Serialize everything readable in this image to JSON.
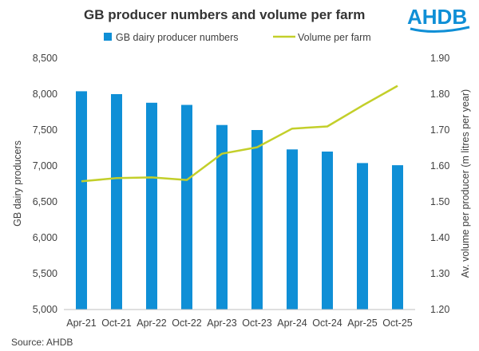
{
  "chart_data": {
    "type": "bar+line",
    "title": "GB producer numbers and volume per farm",
    "categories": [
      "Apr-21",
      "Oct-21",
      "Apr-22",
      "Oct-22",
      "Apr-23",
      "Oct-23",
      "Apr-24",
      "Oct-24",
      "Apr-25",
      "Oct-25"
    ],
    "series": [
      {
        "name": "GB dairy producer numbers",
        "type": "bar",
        "axis": "left",
        "color": "#0f8fd6",
        "values": [
          8040,
          8000,
          7880,
          7850,
          7570,
          7500,
          7230,
          7200,
          7040,
          7010
        ]
      },
      {
        "name": "Volume per farm",
        "type": "line",
        "axis": "right",
        "color": "#c3cf2a",
        "values": [
          1.557,
          1.566,
          1.568,
          1.561,
          1.634,
          1.652,
          1.704,
          1.71,
          1.768,
          1.823
        ]
      }
    ],
    "ylabel_left": "GB dairy producers",
    "ylabel_right": "Av. volume per producer (m litres per year)",
    "ylim_left": [
      5000,
      8500
    ],
    "yticks_left": [
      "5,000",
      "5,500",
      "6,000",
      "6,500",
      "7,000",
      "7,500",
      "8,000",
      "8,500"
    ],
    "ylim_right": [
      1.2,
      1.9
    ],
    "yticks_right": [
      "1.20",
      "1.30",
      "1.40",
      "1.50",
      "1.60",
      "1.70",
      "1.80",
      "1.90"
    ],
    "grid": false,
    "legend_position": "top-center"
  },
  "source": "Source: AHDB",
  "logo": {
    "text": "AHDB",
    "color": "#0f8fd6"
  }
}
